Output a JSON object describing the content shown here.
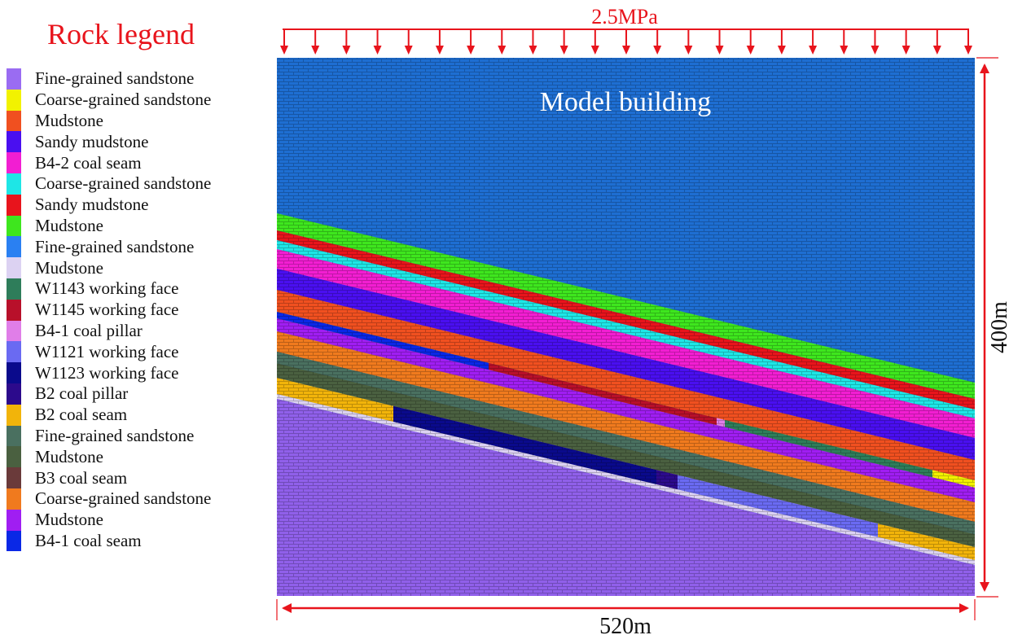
{
  "legend": {
    "title": "Rock legend",
    "items": [
      {
        "label": "Fine-grained sandstone",
        "color": "#9a6cf2"
      },
      {
        "label": "Coarse-grained sandstone",
        "color": "#f2f200"
      },
      {
        "label": "Mudstone",
        "color": "#f05020"
      },
      {
        "label": "Sandy mudstone",
        "color": "#4a0ff0"
      },
      {
        "label": "B4-2 coal seam",
        "color": "#f21ed2"
      },
      {
        "label": "Coarse-grained sandstone",
        "color": "#1ee6e6"
      },
      {
        "label": "Sandy mudstone",
        "color": "#e8141c"
      },
      {
        "label": "Mudstone",
        "color": "#3ee61e"
      },
      {
        "label": "Fine-grained sandstone",
        "color": "#2a80f2"
      },
      {
        "label": "Mudstone",
        "color": "#dcd2f2"
      },
      {
        "label": "W1143 working face",
        "color": "#2e7d5a"
      },
      {
        "label": "W1145 working face",
        "color": "#b8102a"
      },
      {
        "label": "B4-1 coal pillar",
        "color": "#e07ee8"
      },
      {
        "label": "W1121 working face",
        "color": "#6a6af2"
      },
      {
        "label": "W1123 working face",
        "color": "#0a0a8c"
      },
      {
        "label": "B2 coal pillar",
        "color": "#2c0a8c"
      },
      {
        "label": "B2 coal seam",
        "color": "#f2b40a"
      },
      {
        "label": "Fine-grained sandstone",
        "color": "#4a7060"
      },
      {
        "label": "Mudstone",
        "color": "#4a6040"
      },
      {
        "label": "B3 coal seam",
        "color": "#6a3a3a"
      },
      {
        "label": "Coarse-grained sandstone",
        "color": "#f07a1e"
      },
      {
        "label": "Mudstone",
        "color": "#a01ef2"
      },
      {
        "label": "B4-1 coal seam",
        "color": "#0a28e6"
      }
    ]
  },
  "model": {
    "label": "Model building",
    "load_label": "2.5MPa",
    "height_label": "400m",
    "width_label": "520m"
  },
  "colors": {
    "annotation": "#e8141c",
    "background_block": "#1e6ed2",
    "floor_block": "#9060ea"
  }
}
